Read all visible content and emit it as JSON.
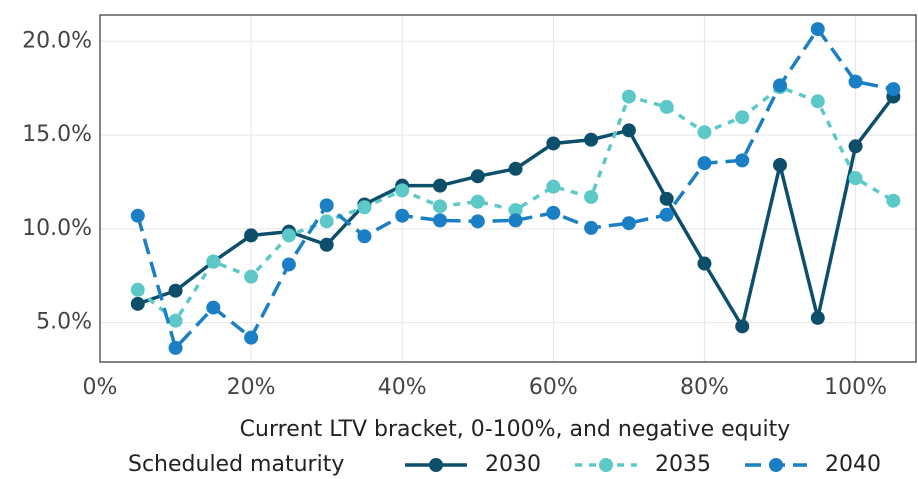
{
  "chart_data": {
    "type": "line",
    "x_label": "Current LTV bracket, 0-100%, and negative equity",
    "legend_title": "Scheduled maturity",
    "legend": "bottom",
    "grid": true,
    "x": [
      5,
      10,
      15,
      20,
      25,
      30,
      35,
      40,
      45,
      50,
      55,
      60,
      65,
      70,
      75,
      80,
      85,
      90,
      95,
      100,
      105
    ],
    "series": [
      {
        "name": "2030",
        "color": "#0d4f6b",
        "dash": "solid",
        "values": [
          6.0,
          6.7,
          8.25,
          9.65,
          9.85,
          9.15,
          11.3,
          12.3,
          12.3,
          12.8,
          13.2,
          14.55,
          14.75,
          15.25,
          11.6,
          8.15,
          4.8,
          13.4,
          5.25,
          14.4,
          17.05
        ]
      },
      {
        "name": "2035",
        "color": "#5cc8c8",
        "dash": "dotted",
        "values": [
          6.75,
          5.1,
          8.25,
          7.45,
          9.65,
          10.4,
          11.15,
          12.05,
          11.2,
          11.45,
          11.0,
          12.25,
          11.7,
          17.05,
          16.5,
          15.15,
          15.95,
          17.55,
          16.8,
          12.7,
          11.5
        ]
      },
      {
        "name": "2040",
        "color": "#1a7fc4",
        "dash": "dashed",
        "values": [
          10.7,
          3.65,
          5.8,
          4.2,
          8.1,
          11.25,
          9.6,
          10.7,
          10.45,
          10.4,
          10.45,
          10.85,
          10.05,
          10.3,
          10.75,
          13.5,
          13.65,
          17.65,
          20.65,
          17.85,
          17.45
        ]
      }
    ],
    "xlim": [
      0,
      108
    ],
    "ylim": [
      2.9,
      21.4
    ],
    "xticks": [
      {
        "value": 0,
        "label": "0%"
      },
      {
        "value": 20,
        "label": "20%"
      },
      {
        "value": 40,
        "label": "40%"
      },
      {
        "value": 60,
        "label": "60%"
      },
      {
        "value": 80,
        "label": "80%"
      },
      {
        "value": 100,
        "label": "100%"
      }
    ],
    "yticks": [
      {
        "value": 5,
        "label": "5.0%"
      },
      {
        "value": 10,
        "label": "10.0%"
      },
      {
        "value": 15,
        "label": "15.0%"
      },
      {
        "value": 20,
        "label": "20.0%"
      }
    ]
  }
}
